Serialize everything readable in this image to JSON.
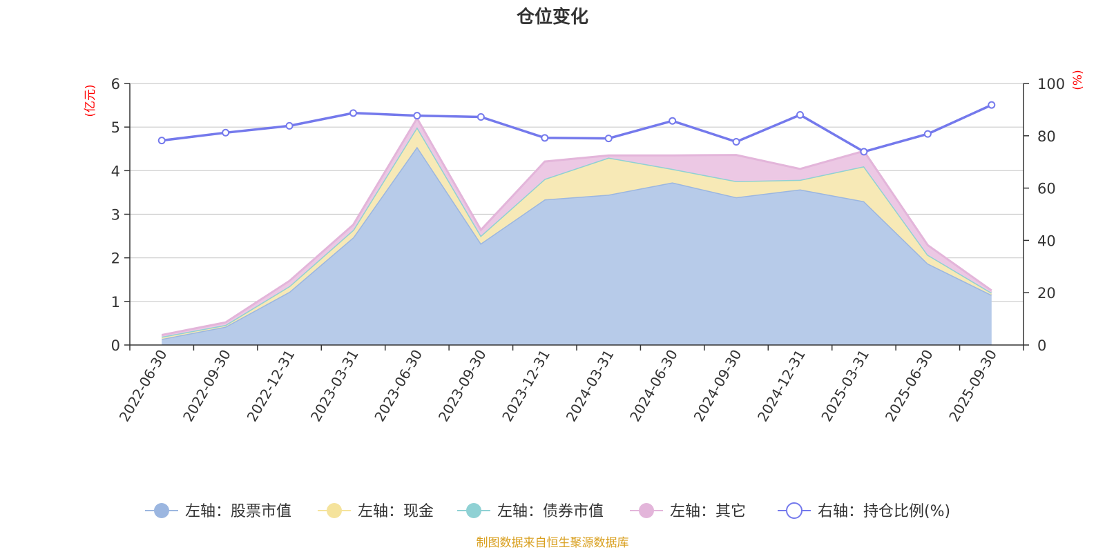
{
  "chart_data": {
    "type": "area",
    "title": "仓位变化",
    "left_axis": {
      "unit": "(亿元)",
      "ylim": [
        0,
        6
      ],
      "ticks": [
        "0",
        "1",
        "2",
        "3",
        "4",
        "5",
        "6"
      ]
    },
    "right_axis": {
      "unit": "(%)",
      "ylim": [
        0,
        100
      ],
      "ticks": [
        "0",
        "20",
        "40",
        "60",
        "80",
        "100"
      ]
    },
    "categories": [
      "2022-06-30",
      "2022-09-30",
      "2022-12-31",
      "2023-03-31",
      "2023-06-30",
      "2023-09-30",
      "2023-12-31",
      "2024-03-31",
      "2024-06-30",
      "2024-09-30",
      "2024-12-31",
      "2025-03-31",
      "2025-06-30",
      "2025-09-30"
    ],
    "series": [
      {
        "name": "左轴：股票市值",
        "axis": "left",
        "kind": "stacked-area",
        "color": "#9bb6e0",
        "fill": "#b7cbe9",
        "values": [
          0.14,
          0.42,
          1.22,
          2.47,
          4.55,
          2.33,
          3.34,
          3.45,
          3.73,
          3.39,
          3.57,
          3.3,
          1.87,
          1.15
        ]
      },
      {
        "name": "左轴：现金",
        "axis": "left",
        "kind": "stacked-area",
        "color": "#f5e39c",
        "fill": "#f7e9b6",
        "values": [
          0.05,
          0.04,
          0.13,
          0.17,
          0.45,
          0.18,
          0.47,
          0.85,
          0.31,
          0.37,
          0.22,
          0.8,
          0.2,
          0.05
        ]
      },
      {
        "name": "左轴：债券市值",
        "axis": "left",
        "kind": "stacked-area",
        "color": "#8fd1d4",
        "fill": "#b8e3e5",
        "values": [
          0,
          0,
          0,
          0,
          0,
          0,
          0,
          0,
          0,
          0,
          0,
          0,
          0,
          0
        ]
      },
      {
        "name": "左轴：其它",
        "axis": "left",
        "kind": "stacked-area",
        "color": "#e3b5da",
        "fill": "#ecc8e4",
        "values": [
          0.04,
          0.06,
          0.12,
          0.12,
          0.2,
          0.13,
          0.4,
          0.05,
          0.31,
          0.6,
          0.25,
          0.35,
          0.22,
          0.05
        ]
      },
      {
        "name": "右轴：持仓比例(%)",
        "axis": "right",
        "kind": "line",
        "color": "#7479ec",
        "values": [
          78.2,
          81.2,
          83.8,
          88.7,
          87.7,
          87.2,
          79.2,
          79.0,
          85.7,
          77.7,
          88.0,
          73.9,
          80.7,
          91.8
        ]
      }
    ],
    "grid": true,
    "legend_position": "bottom-center",
    "source": "制图数据来自恒生聚源数据库"
  }
}
